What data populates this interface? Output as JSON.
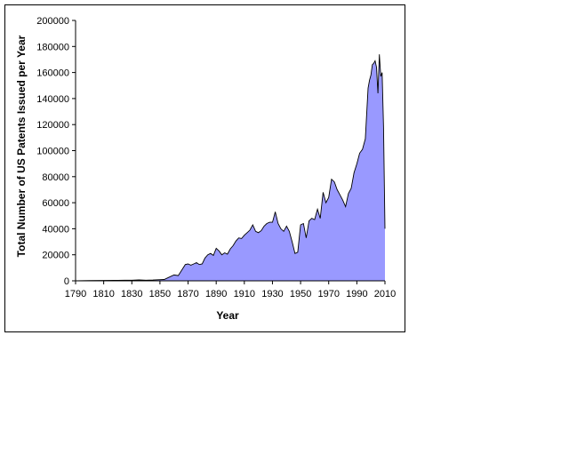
{
  "chart_data": {
    "type": "area",
    "xlabel": "Year",
    "ylabel": "Total Number of US Patents Issued per Year",
    "xlim": [
      1790,
      2010
    ],
    "ylim": [
      0,
      200000
    ],
    "x_ticks": [
      "1790",
      "1810",
      "1830",
      "1850",
      "1870",
      "1890",
      "1910",
      "1930",
      "1950",
      "1970",
      "1990",
      "2010"
    ],
    "y_ticks": [
      "0",
      "20000",
      "40000",
      "60000",
      "80000",
      "100000",
      "120000",
      "140000",
      "160000",
      "180000",
      "200000"
    ],
    "grid": false,
    "legend": "none",
    "fill_color": "#9999ff",
    "line_color": "#000000",
    "series": [
      {
        "x": [
          1790,
          1800,
          1810,
          1820,
          1825,
          1830,
          1835,
          1840,
          1845,
          1850,
          1853,
          1856,
          1860,
          1863,
          1866,
          1868,
          1870,
          1872,
          1874,
          1876,
          1878,
          1880,
          1882,
          1884,
          1886,
          1888,
          1890,
          1892,
          1894,
          1896,
          1898,
          1900,
          1902,
          1904,
          1906,
          1908,
          1910,
          1912,
          1914,
          1916,
          1918,
          1920,
          1922,
          1924,
          1926,
          1928,
          1930,
          1932,
          1934,
          1936,
          1938,
          1940,
          1942,
          1944,
          1946,
          1948,
          1950,
          1952,
          1954,
          1956,
          1958,
          1960,
          1962,
          1964,
          1966,
          1968,
          1970,
          1972,
          1974,
          1976,
          1978,
          1980,
          1982,
          1984,
          1986,
          1988,
          1990,
          1992,
          1994,
          1996,
          1998,
          1999,
          2000,
          2001,
          2002,
          2003,
          2004,
          2005,
          2006,
          2007,
          2008,
          2009,
          2010
        ],
        "values": [
          0,
          200,
          300,
          400,
          500,
          500,
          700,
          500,
          600,
          900,
          1000,
          2500,
          4500,
          4000,
          9000,
          12500,
          13000,
          12000,
          13000,
          14000,
          12500,
          13000,
          17500,
          20000,
          21000,
          19500,
          25000,
          23000,
          20000,
          21500,
          20500,
          24500,
          27000,
          30500,
          33000,
          32500,
          35000,
          37000,
          39000,
          43000,
          38000,
          37000,
          38500,
          42000,
          44000,
          45000,
          45000,
          53000,
          44000,
          40000,
          38000,
          42000,
          38000,
          30000,
          21000,
          22000,
          43000,
          44000,
          33000,
          46000,
          48000,
          47000,
          55000,
          48000,
          68000,
          60000,
          64000,
          78000,
          76000,
          70000,
          66000,
          62000,
          57000,
          67000,
          71000,
          83000,
          90000,
          98000,
          101000,
          109000,
          148000,
          154000,
          158000,
          166000,
          167000,
          169000,
          164000,
          144000,
          174000,
          157000,
          160000,
          118000,
          40000
        ]
      }
    ]
  }
}
